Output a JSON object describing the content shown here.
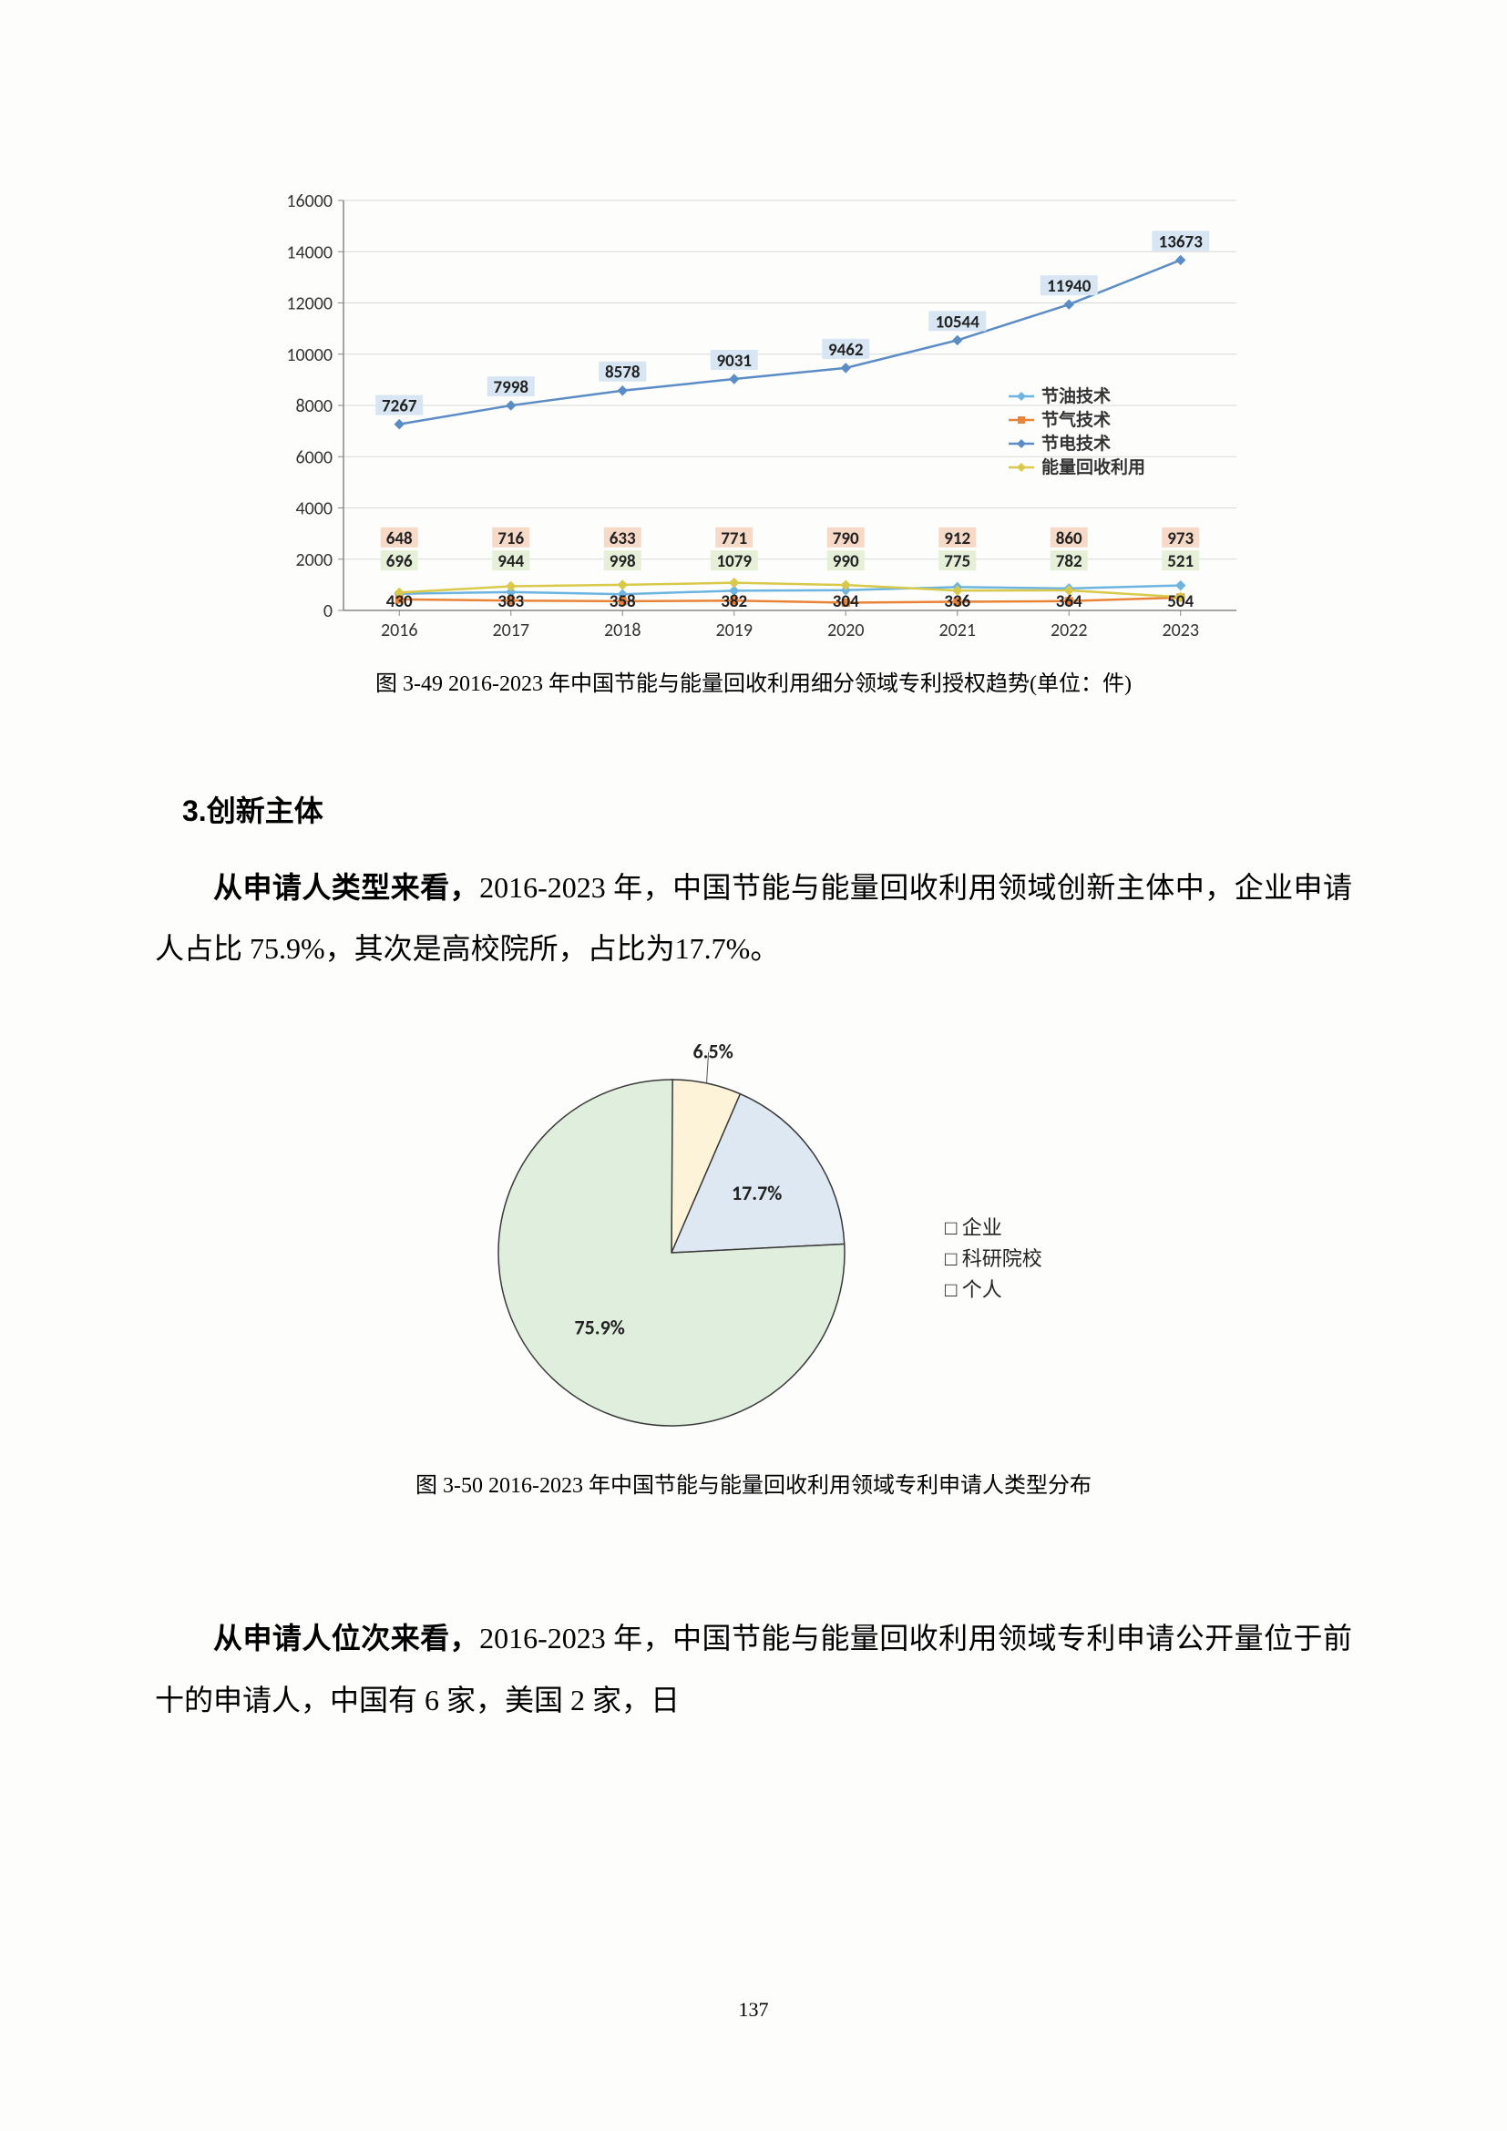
{
  "lineChart": {
    "type": "line",
    "categories": [
      "2016",
      "2017",
      "2018",
      "2019",
      "2020",
      "2021",
      "2022",
      "2023"
    ],
    "series": [
      {
        "name": "节油技术",
        "color": "#6db5e0",
        "marker": "diamond",
        "values": [
          648,
          716,
          633,
          771,
          790,
          912,
          860,
          973
        ],
        "labelBg": "#f7d9c8"
      },
      {
        "name": "节气技术",
        "color": "#e8833a",
        "marker": "square",
        "values": [
          430,
          383,
          358,
          382,
          304,
          336,
          364,
          504
        ],
        "labelBg": "none"
      },
      {
        "name": "节电技术",
        "color": "#5b8cc5",
        "marker": "diamond",
        "values": [
          7267,
          7998,
          8578,
          9031,
          9462,
          10544,
          11940,
          13673
        ],
        "labelBg": "#d8e6f3"
      },
      {
        "name": "能量回收利用",
        "color": "#d9c94a",
        "marker": "diamond",
        "values": [
          696,
          944,
          998,
          1079,
          990,
          775,
          782,
          521
        ],
        "labelBg": "#e6f0d8"
      }
    ],
    "ylim": [
      0,
      16000
    ],
    "ytick_step": 2000,
    "grid_color": "#d9d9d9",
    "axis_color": "#888888",
    "label_fontsize": 19,
    "tick_fontsize": 20
  },
  "caption1": "图 3-49 2016-2023 年中国节能与能量回收利用细分领域专利授权趋势(单位：件)",
  "sectionHead": "3.创新主体",
  "para1": {
    "lead": "从申请人类型来看，",
    "rest1": "2016-2023 年，中国节能与能量回收利用领域创新主体中，企业申请人占比 75.9%，其次是高校院所，占比为17.7%。"
  },
  "pieChart": {
    "type": "pie",
    "slices": [
      {
        "label": "企业",
        "value": 75.9,
        "color": "#e0efdd",
        "textPos": "inside"
      },
      {
        "label": "科研院校",
        "value": 17.7,
        "color": "#dde8f2",
        "textPos": "inside"
      },
      {
        "label": "个人",
        "value": 6.5,
        "color": "#fdf3d8",
        "textPos": "outside"
      }
    ],
    "stroke": "#3a3a3a",
    "label_fontsize": 22,
    "legend_items": [
      "企业",
      "科研院校",
      "个人"
    ],
    "legend_marker": "□"
  },
  "caption2": "图 3-50 2016-2023 年中国节能与能量回收利用领域专利申请人类型分布",
  "para2": {
    "lead": "从申请人位次来看，",
    "rest1": "2016-2023 年，中国节能与能量回收利用领域专利申请公开量位于前十的申请人，中国有 6 家，美国 2 家，日"
  },
  "pageNum": "137"
}
